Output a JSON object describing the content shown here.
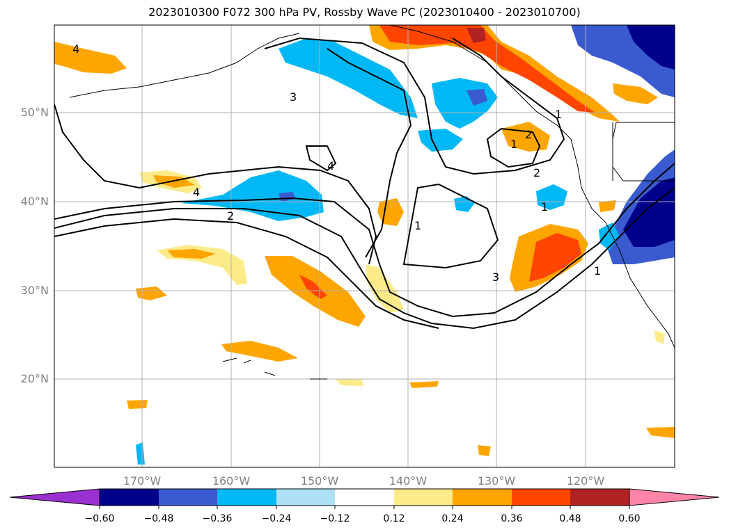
{
  "title": "2023010300 F072 300 hPa PV, Rossby Wave PC (2023010400 - 2023010700)",
  "latitude_labels": [
    "50°N",
    "40°N",
    "30°N",
    "20°N"
  ],
  "longitude_labels": [
    "170°W",
    "160°W",
    "150°W",
    "140°W",
    "130°W",
    "120°W"
  ],
  "contour_labels": [
    "4",
    "3",
    "4",
    "4",
    "2",
    "2",
    "1",
    "3",
    "1",
    "2",
    "1",
    "1",
    "1"
  ],
  "colorbar": {
    "ticks": [
      "−0.60",
      "−0.48",
      "−0.36",
      "−0.24",
      "−0.12",
      "0.12",
      "0.24",
      "0.36",
      "0.48",
      "0.60"
    ],
    "colors": [
      "#9b30d0",
      "#00008b",
      "#3a5bd0",
      "#00b8f5",
      "#aee0f8",
      "#ffffff",
      "#fdeb8a",
      "#ffa500",
      "#ff4500",
      "#b22222",
      "#ff85a8"
    ]
  }
}
